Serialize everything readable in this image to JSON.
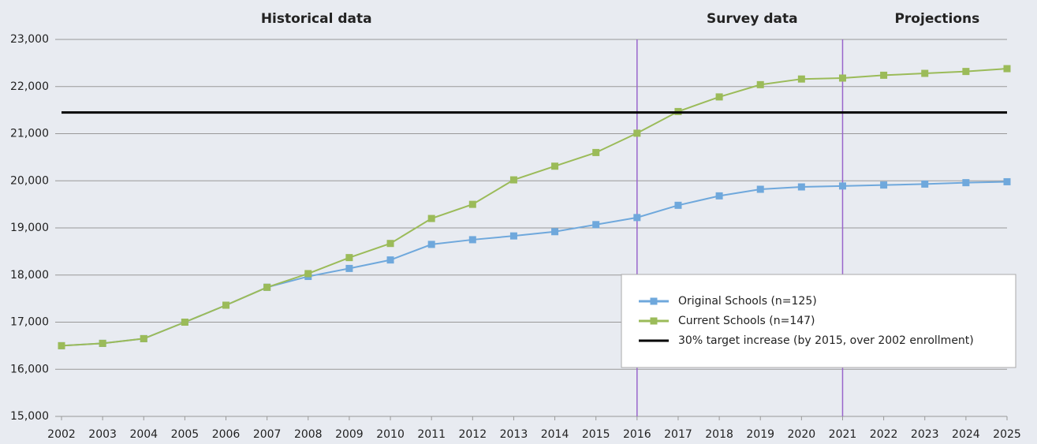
{
  "chart_data": {
    "type": "line",
    "x": [
      2002,
      2003,
      2004,
      2005,
      2006,
      2007,
      2008,
      2009,
      2010,
      2011,
      2012,
      2013,
      2014,
      2015,
      2016,
      2017,
      2018,
      2019,
      2020,
      2021,
      2022,
      2023,
      2024,
      2025
    ],
    "xlim": [
      2002,
      2025
    ],
    "ylim": [
      15000,
      23000
    ],
    "yticks": [
      {
        "value": 15000,
        "label": "15,000"
      },
      {
        "value": 16000,
        "label": "16,000"
      },
      {
        "value": 17000,
        "label": "17,000"
      },
      {
        "value": 18000,
        "label": "18,000"
      },
      {
        "value": 19000,
        "label": "19,000"
      },
      {
        "value": 20000,
        "label": "20,000"
      },
      {
        "value": 21000,
        "label": "21,000"
      },
      {
        "value": 22000,
        "label": "22,000"
      },
      {
        "value": 23000,
        "label": "23,000"
      }
    ],
    "grid": true,
    "legend": "lower right",
    "vlines": [
      2016,
      2021
    ],
    "vline_color": "#9966cc",
    "annotations": [
      {
        "text": "Historical data",
        "x": 2008.2
      },
      {
        "text": "Survey data",
        "x": 2018.8
      },
      {
        "text": "Projections",
        "x": 2023.3
      }
    ],
    "series": [
      {
        "name": "Original Schools (n=125)",
        "color": "#6fa8dc",
        "marker": true,
        "values": [
          16500,
          16550,
          16650,
          17000,
          17360,
          17740,
          17970,
          18140,
          18320,
          18650,
          18750,
          18830,
          18920,
          19070,
          19220,
          19480,
          19680,
          19820,
          19870,
          19890,
          19910,
          19930,
          19960,
          19980
        ]
      },
      {
        "name": "Current Schools (n=147)",
        "color": "#9bbb59",
        "marker": true,
        "values": [
          16500,
          16550,
          16650,
          17000,
          17360,
          17740,
          18030,
          18370,
          18670,
          19200,
          19500,
          20020,
          20310,
          20600,
          21010,
          21470,
          21780,
          22040,
          22160,
          22180,
          22240,
          22280,
          22320,
          22380
        ]
      },
      {
        "name": "30% target increase (by 2015, over 2002 enrollment)",
        "color": "#000000",
        "marker": false,
        "values": [
          21450,
          21450,
          21450,
          21450,
          21450,
          21450,
          21450,
          21450,
          21450,
          21450,
          21450,
          21450,
          21450,
          21450,
          21450,
          21450,
          21450,
          21450,
          21450,
          21450,
          21450,
          21450,
          21450,
          21450
        ]
      }
    ]
  }
}
